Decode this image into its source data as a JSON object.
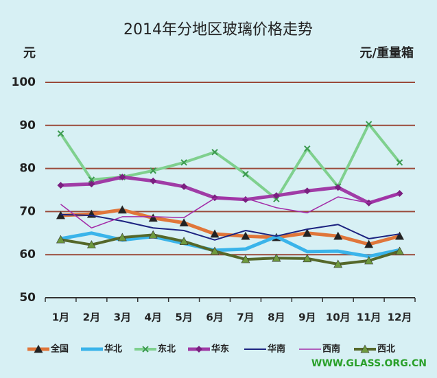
{
  "chart_data": {
    "type": "line",
    "title": "2014年分地区玻璃价格走势",
    "y_label": "元",
    "unit_label": "元/重量箱",
    "watermark": "WWW.GLASS.ORG.CN",
    "categories": [
      "1月",
      "2月",
      "3月",
      "4月",
      "5月",
      "6月",
      "7月",
      "8月",
      "9月",
      "10月",
      "11月",
      "12月"
    ],
    "ylim": [
      50,
      100
    ],
    "yticks": [
      50,
      60,
      70,
      80,
      90,
      100
    ],
    "grid": true,
    "series": [
      {
        "name": "全国",
        "color": "#e0763a",
        "width": 5,
        "marker": "triangle",
        "marker_color": "#222222",
        "values": [
          69.1,
          69.4,
          70.4,
          68.5,
          67.4,
          64.8,
          64.3,
          64.0,
          65.0,
          64.3,
          62.4,
          64.3
        ]
      },
      {
        "name": "华北",
        "color": "#3ab4ea",
        "width": 5,
        "marker": "none",
        "marker_color": "#3ab4ea",
        "values": [
          63.7,
          65.0,
          63.4,
          64.2,
          62.6,
          61.0,
          61.3,
          64.2,
          60.7,
          60.8,
          59.6,
          61.1
        ]
      },
      {
        "name": "东北",
        "color": "#7fd08e",
        "width": 4,
        "marker": "x",
        "marker_color": "#3c9a50",
        "values": [
          88.1,
          77.4,
          78.0,
          79.5,
          81.4,
          83.8,
          78.7,
          72.9,
          84.6,
          75.8,
          90.3,
          81.4
        ]
      },
      {
        "name": "华东",
        "color": "#a03ca6",
        "width": 5,
        "marker": "diamond",
        "marker_color": "#7a2080",
        "values": [
          76.1,
          76.4,
          78.0,
          77.1,
          75.8,
          73.2,
          72.8,
          73.7,
          74.8,
          75.6,
          72.0,
          74.2
        ]
      },
      {
        "name": "华南",
        "color": "#1c2380",
        "width": 2,
        "marker": "none",
        "marker_color": "#1c2380",
        "values": [
          69.3,
          69.1,
          67.8,
          66.2,
          65.6,
          63.4,
          65.6,
          64.3,
          65.9,
          67.0,
          63.7,
          64.8
        ]
      },
      {
        "name": "西南",
        "color": "#a32ca8",
        "width": 1.5,
        "marker": "none",
        "marker_color": "#a32ca8",
        "values": [
          71.7,
          66.2,
          68.8,
          68.8,
          68.6,
          73.1,
          73.1,
          70.9,
          69.7,
          73.4,
          72.0,
          74.2
        ]
      },
      {
        "name": "西北",
        "color": "#55682a",
        "width": 4,
        "marker": "triangle",
        "marker_color": "#6e9a3e",
        "values": [
          63.5,
          62.3,
          64.0,
          64.6,
          63.1,
          60.8,
          58.9,
          59.2,
          59.1,
          57.8,
          58.6,
          60.8
        ]
      }
    ]
  }
}
